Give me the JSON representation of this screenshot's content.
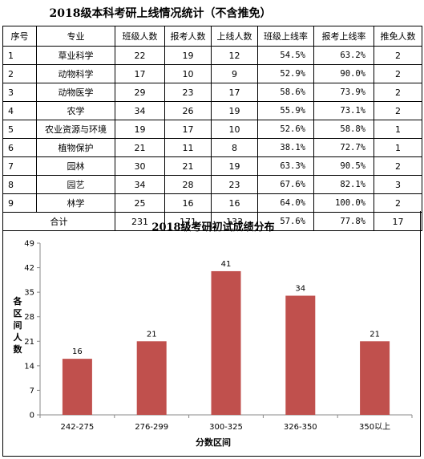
{
  "title": "2018级本科考研上线情况统计（不含推免）",
  "table": {
    "headers": [
      "序号",
      "专业",
      "班级人数",
      "报考人数",
      "上线人数",
      "班级上线率",
      "报考上线率",
      "推免人数"
    ],
    "rows": [
      [
        "1",
        "草业科学",
        "22",
        "19",
        "12",
        "54.5%",
        "63.2%",
        "2"
      ],
      [
        "2",
        "动物科学",
        "17",
        "10",
        "9",
        "52.9%",
        "90.0%",
        "2"
      ],
      [
        "3",
        "动物医学",
        "29",
        "23",
        "17",
        "58.6%",
        "73.9%",
        "2"
      ],
      [
        "4",
        "农学",
        "34",
        "26",
        "19",
        "55.9%",
        "73.1%",
        "2"
      ],
      [
        "5",
        "农业资源与环境",
        "19",
        "17",
        "10",
        "52.6%",
        "58.8%",
        "1"
      ],
      [
        "6",
        "植物保护",
        "21",
        "11",
        "8",
        "38.1%",
        "72.7%",
        "1"
      ],
      [
        "7",
        "园林",
        "30",
        "21",
        "19",
        "63.3%",
        "90.5%",
        "2"
      ],
      [
        "8",
        "园艺",
        "34",
        "28",
        "23",
        "67.6%",
        "82.1%",
        "3"
      ],
      [
        "9",
        "林学",
        "25",
        "16",
        "16",
        "64.0%",
        "100.0%",
        "2"
      ]
    ],
    "total": [
      "合计",
      "231",
      "171",
      "133",
      "57.6%",
      "77.8%",
      "17"
    ]
  },
  "chart_data": {
    "type": "bar",
    "title": "2018级考研初试成绩分布",
    "xlabel": "分数区间",
    "ylabel": "各区间人数",
    "categories": [
      "242-275",
      "276-299",
      "300-325",
      "326-350",
      "350以上"
    ],
    "values": [
      16,
      21,
      41,
      34,
      21
    ],
    "yticks": [
      0,
      7,
      14,
      21,
      28,
      35,
      42,
      49
    ],
    "ylim": [
      0,
      49
    ],
    "grid": false,
    "bar_color": "#c0504d"
  }
}
